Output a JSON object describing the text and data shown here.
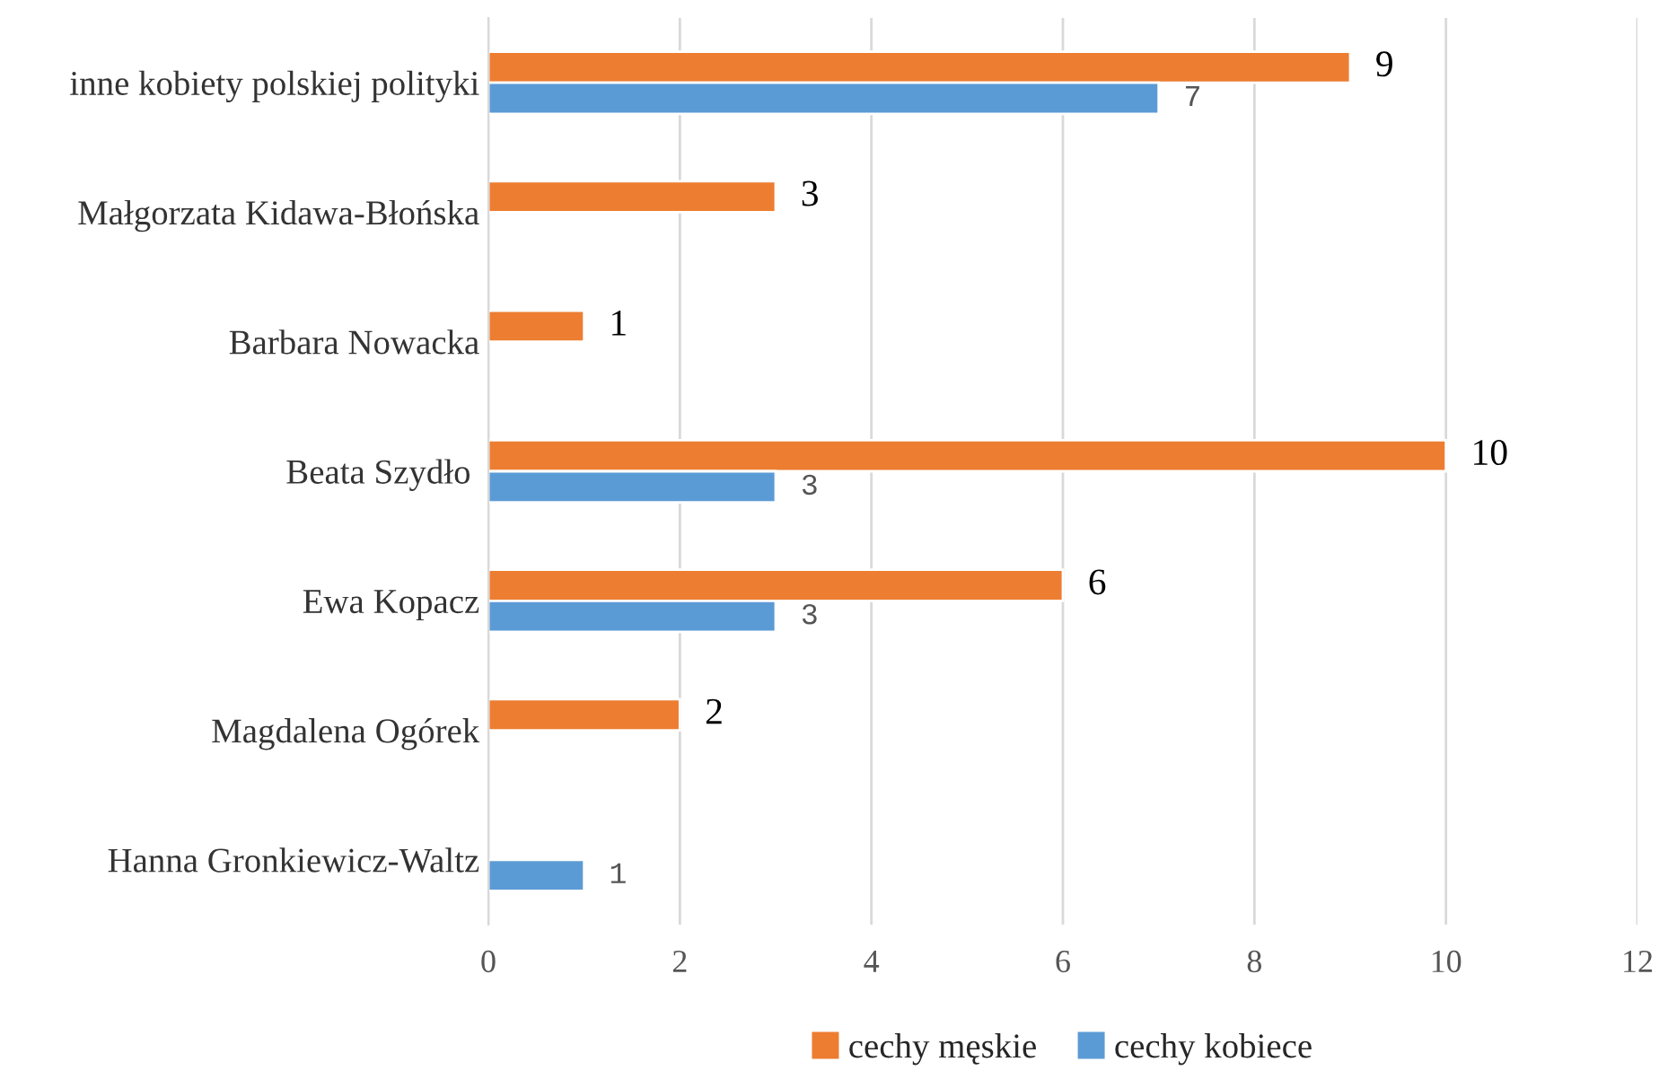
{
  "chart_data": {
    "type": "bar",
    "orientation": "horizontal",
    "categories": [
      "inne kobiety polskiej polityki",
      "Małgorzata Kidawa-Błońska",
      "Barbara Nowacka",
      "Beata Szydło ",
      "Ewa Kopacz",
      "Magdalena Ogórek",
      "Hanna Gronkiewicz-Waltz"
    ],
    "series": [
      {
        "name": "cechy męskie",
        "color": "#ed7d31",
        "values": [
          9,
          3,
          1,
          10,
          6,
          2,
          null
        ]
      },
      {
        "name": "cechy kobiece",
        "color": "#5b9bd5",
        "values": [
          7,
          null,
          null,
          3,
          3,
          null,
          1
        ]
      }
    ],
    "xlim": [
      0,
      12
    ],
    "xticks": [
      0,
      2,
      4,
      6,
      8,
      10,
      12
    ],
    "grid": "x",
    "legend": "bottom",
    "data_labels": true
  }
}
